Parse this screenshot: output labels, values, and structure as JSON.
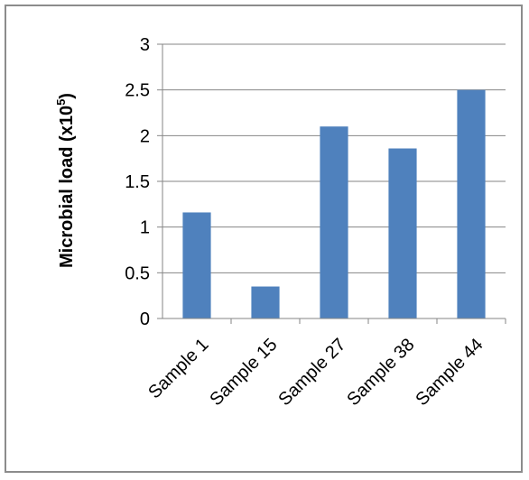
{
  "chart_data": {
    "type": "bar",
    "categories": [
      "Sample 1",
      "Sample 15",
      "Sample 27",
      "Sample 38",
      "Sample 44"
    ],
    "values": [
      1.16,
      0.35,
      2.1,
      1.86,
      2.5
    ],
    "ylabel": "Microbial load (x10",
    "ylabel_superscript": "5",
    "ylabel_suffix": ")",
    "ylim": [
      0,
      3
    ],
    "yticks": [
      "0",
      "0.5",
      "1",
      "1.5",
      "2",
      "2.5",
      "3"
    ],
    "grid": true,
    "legend": "none",
    "bar_color": "#4f81bd",
    "grid_color": "#868686"
  }
}
